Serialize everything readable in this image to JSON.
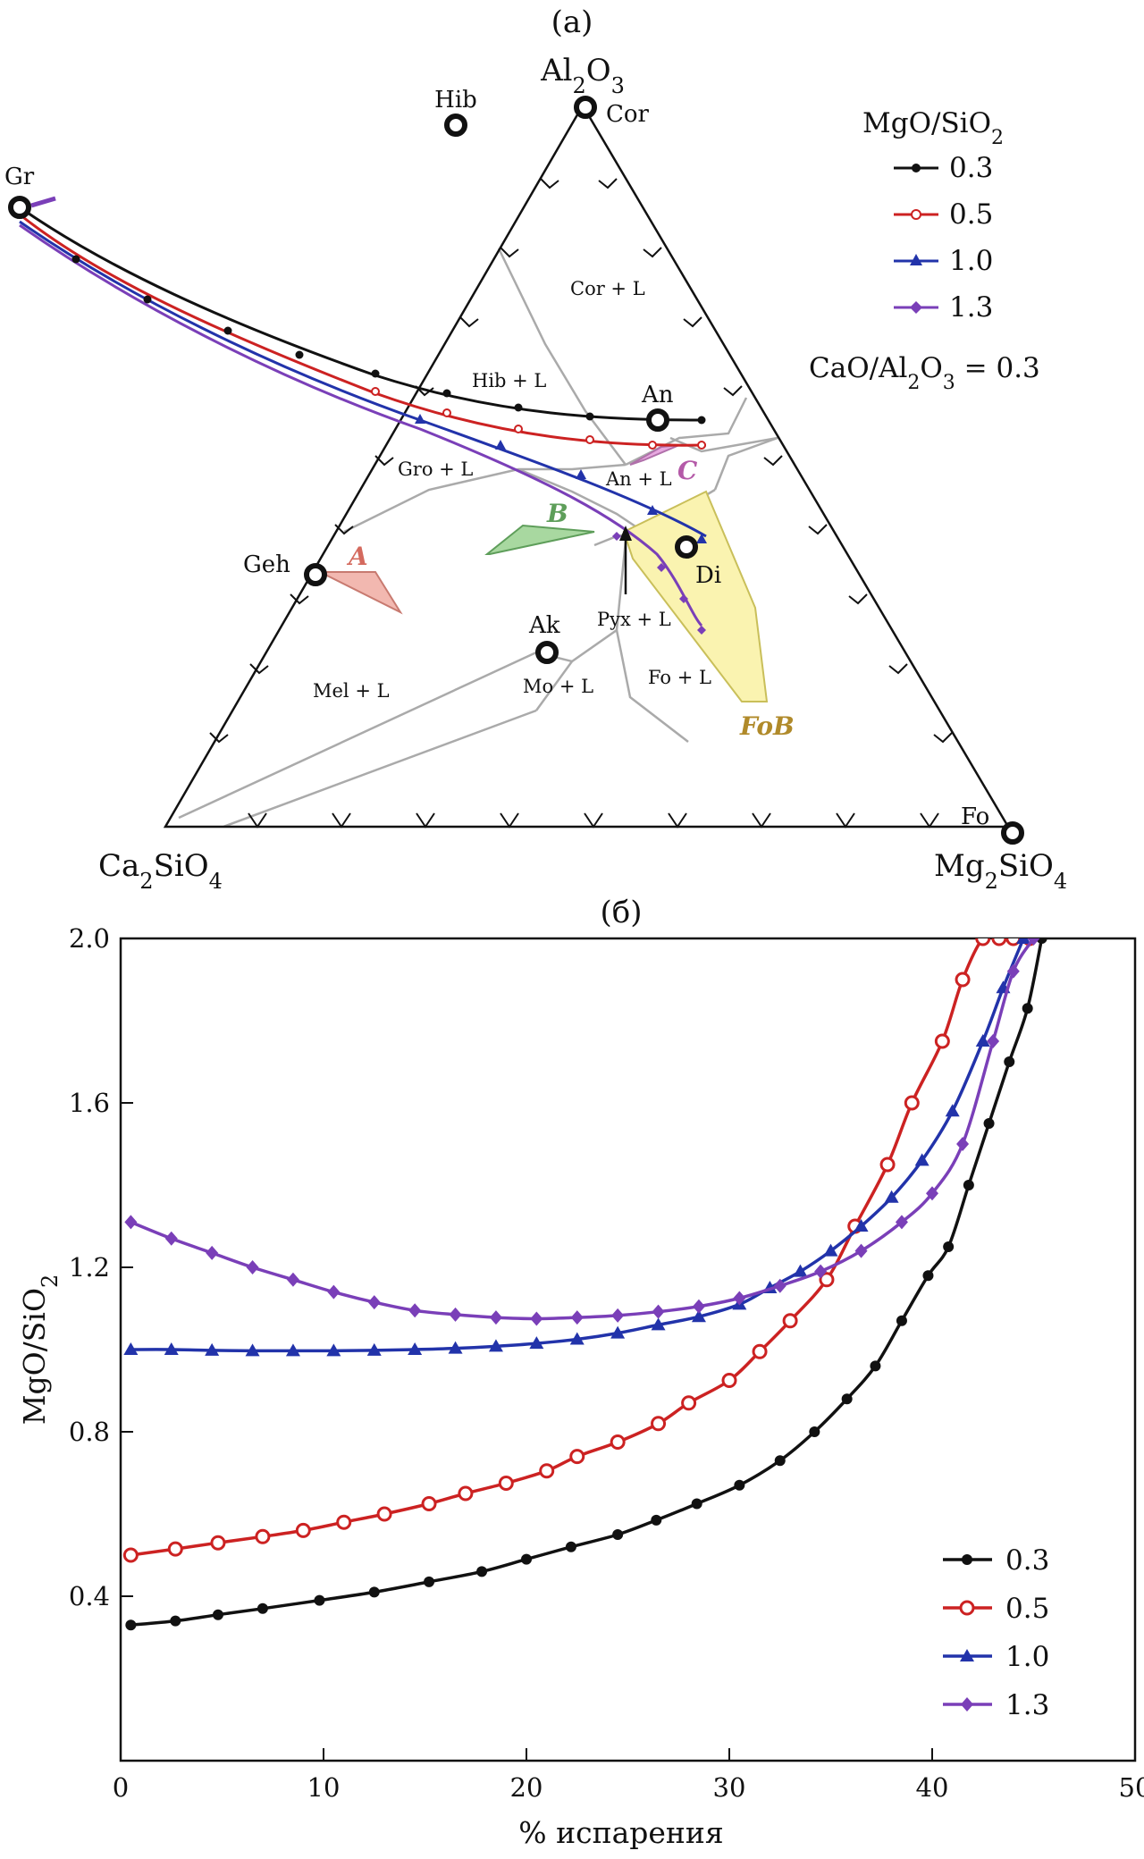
{
  "ternary": {
    "panel_title": "(а)",
    "apex_top": "Al2O3",
    "apex_left": "Ca2SiO4",
    "apex_right": "Mg2SiO4",
    "minerals": [
      "Hib",
      "Cor",
      "Gr",
      "An",
      "Geh",
      "Di",
      "Ak",
      "Fo"
    ],
    "phase_fields": [
      "Cor + L",
      "Hib + L",
      "Gro + L",
      "An + L",
      "Pyx + L",
      "Mel + L",
      "Mo + L",
      "Fo + L"
    ],
    "regions": [
      "A",
      "B",
      "C",
      "FoB"
    ],
    "legend_title": "MgO/SiO2",
    "legend": [
      "0.3",
      "0.5",
      "1.0",
      "1.3"
    ],
    "annotation": "CaO/Al2O3 = 0.3",
    "colors": {
      "s03": "#111111",
      "s05": "#cc2222",
      "s10": "#2233aa",
      "s13": "#7a3fb8"
    }
  },
  "chart_data": {
    "type": "line",
    "title": "(б)",
    "xlabel": "% испарения",
    "ylabel": "MgO/SiO2",
    "xlim": [
      0,
      50
    ],
    "ylim": [
      0,
      2.0
    ],
    "xticks": [
      "0",
      "10",
      "20",
      "30",
      "40",
      "50"
    ],
    "yticks": [
      "0.4",
      "0.8",
      "1.2",
      "1.6",
      "2.0"
    ],
    "legend_position": "bottom-right",
    "series": [
      {
        "name": "0.3",
        "color": "#111111",
        "marker": "dot",
        "x": [
          0.5,
          2.7,
          4.8,
          7.0,
          9.8,
          12.5,
          15.2,
          17.8,
          20.0,
          22.2,
          24.5,
          26.4,
          28.4,
          30.5,
          32.5,
          34.2,
          35.8,
          37.2,
          38.5,
          39.8,
          40.8,
          41.8,
          42.8,
          43.8,
          44.7,
          45.4
        ],
        "y": [
          0.33,
          0.34,
          0.355,
          0.37,
          0.39,
          0.41,
          0.435,
          0.46,
          0.49,
          0.52,
          0.55,
          0.585,
          0.625,
          0.67,
          0.73,
          0.8,
          0.88,
          0.96,
          1.07,
          1.18,
          1.25,
          1.4,
          1.55,
          1.7,
          1.83,
          2.0
        ]
      },
      {
        "name": "0.5",
        "color": "#cc2222",
        "marker": "circle",
        "x": [
          0.5,
          2.7,
          4.8,
          7.0,
          9.0,
          11.0,
          13.0,
          15.2,
          17.0,
          19.0,
          21.0,
          22.5,
          24.5,
          26.5,
          28.0,
          30.0,
          31.5,
          33.0,
          34.8,
          36.2,
          37.8,
          39.0,
          40.5,
          41.5,
          42.5,
          43.3,
          44.0,
          44.8
        ],
        "y": [
          0.5,
          0.515,
          0.53,
          0.545,
          0.56,
          0.58,
          0.6,
          0.625,
          0.65,
          0.675,
          0.705,
          0.74,
          0.775,
          0.82,
          0.87,
          0.925,
          0.995,
          1.07,
          1.17,
          1.3,
          1.45,
          1.6,
          1.75,
          1.9,
          2.0,
          2.0,
          2.0,
          2.0
        ]
      },
      {
        "name": "1.0",
        "color": "#2233aa",
        "marker": "triangle",
        "x": [
          0.5,
          2.5,
          4.5,
          6.5,
          8.5,
          10.5,
          12.5,
          14.5,
          16.5,
          18.5,
          20.5,
          22.5,
          24.5,
          26.5,
          28.5,
          30.5,
          32.0,
          33.5,
          35.0,
          36.5,
          38.0,
          39.5,
          41.0,
          42.5,
          43.5,
          44.5
        ],
        "y": [
          1.0,
          1.0,
          0.998,
          0.997,
          0.997,
          0.997,
          0.998,
          1.0,
          1.003,
          1.008,
          1.015,
          1.025,
          1.04,
          1.06,
          1.08,
          1.11,
          1.15,
          1.19,
          1.24,
          1.3,
          1.37,
          1.46,
          1.58,
          1.75,
          1.88,
          2.0
        ]
      },
      {
        "name": "1.3",
        "color": "#7a3fb8",
        "marker": "diamond",
        "x": [
          0.5,
          2.5,
          4.5,
          6.5,
          8.5,
          10.5,
          12.5,
          14.5,
          16.5,
          18.5,
          20.5,
          22.5,
          24.5,
          26.5,
          28.5,
          30.5,
          32.5,
          34.5,
          36.5,
          38.5,
          40.0,
          41.5,
          43.0,
          44.0,
          45.0
        ],
        "y": [
          1.31,
          1.27,
          1.235,
          1.2,
          1.17,
          1.14,
          1.115,
          1.095,
          1.085,
          1.078,
          1.075,
          1.078,
          1.083,
          1.092,
          1.105,
          1.125,
          1.155,
          1.19,
          1.24,
          1.31,
          1.38,
          1.5,
          1.75,
          1.92,
          2.0
        ]
      }
    ]
  }
}
